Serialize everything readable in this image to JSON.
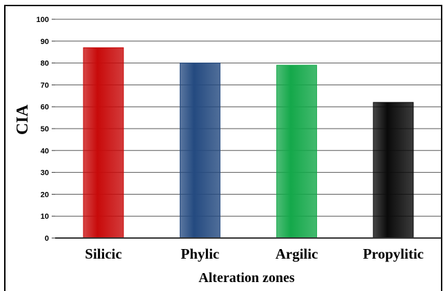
{
  "chart_data": {
    "type": "bar",
    "categories": [
      "Silicic",
      "Phylic",
      "Argilic",
      "Propylitic"
    ],
    "values": [
      87,
      80,
      79,
      62
    ],
    "colors": [
      "#c80a0a",
      "#244a80",
      "#14a84a",
      "#0a0a0a"
    ],
    "title": "",
    "xlabel": "Alteration zones",
    "ylabel": "CIA",
    "ylim": [
      0,
      100
    ],
    "yticks": [
      "0",
      "10",
      "20",
      "30",
      "40",
      "50",
      "60",
      "70",
      "80",
      "90",
      "100"
    ],
    "grid": true,
    "legend": "none"
  }
}
